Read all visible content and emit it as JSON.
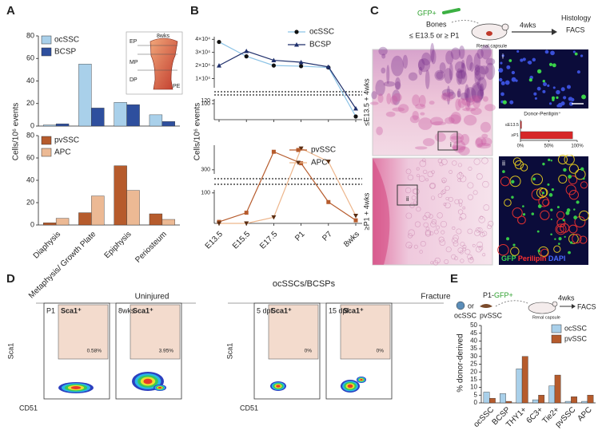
{
  "chart_data": [
    {
      "type": "bar",
      "categories": [
        null,
        null,
        null,
        null
      ],
      "series": [
        {
          "name": "ocSSC",
          "color": "#a9d0ea",
          "values": [
            1,
            55,
            21,
            10
          ]
        },
        {
          "name": "BCSP",
          "color": "#2e4f9e",
          "values": [
            2,
            16,
            19,
            4
          ]
        }
      ],
      "ylim": [
        0,
        80
      ],
      "yticks": [
        0,
        20,
        40,
        60,
        80
      ]
    },
    {
      "type": "bar",
      "ylabel": "Cells/10⁶ events",
      "categories": [
        "Diaphysis",
        "Metaphysis/ Growth Plate",
        "Epiphysis",
        "Periosteum"
      ],
      "series": [
        {
          "name": "pvSSC",
          "color": "#b65b2c",
          "values": [
            2,
            11,
            53,
            10
          ]
        },
        {
          "name": "APC",
          "color": "#ecb994",
          "values": [
            6,
            26,
            31,
            5
          ]
        }
      ],
      "ylim": [
        0,
        80
      ],
      "yticks": [
        0,
        20,
        40,
        60,
        80
      ]
    },
    {
      "type": "line",
      "categories": [
        null,
        null,
        null,
        null,
        null,
        null
      ],
      "series": [
        {
          "name": "ocSSC",
          "color": "#8cc3e6",
          "marker": "circle",
          "marker_color": "#111",
          "values": [
            38000,
            27000,
            20000,
            19500,
            18500,
            20
          ]
        },
        {
          "name": "BCSP",
          "color": "#1f2f6b",
          "marker": "triangle",
          "marker_color": "#1f2f6b",
          "values": [
            20000,
            31000,
            24000,
            22500,
            19000,
            70
          ]
        }
      ],
      "ysegments": [
        {
          "ylim": [
            3000,
            42000
          ],
          "yticks": [
            {
              "value": 10000,
              "label": "1×10⁴"
            },
            {
              "value": 20000,
              "label": "2×10⁴"
            },
            {
              "value": 30000,
              "label": "3×10⁴"
            },
            {
              "value": 40000,
              "label": "4×10⁴"
            }
          ]
        },
        {
          "ylim": [
            0,
            130
          ],
          "yticks": [
            100,
            120
          ]
        }
      ]
    },
    {
      "type": "line",
      "ylabel": "Cells/10⁶ events",
      "categories": [
        "E13.5",
        "E15.5",
        "E17.5",
        "P1",
        "P7",
        "8wks"
      ],
      "series": [
        {
          "name": "pvSSC",
          "color": "#b65b2c",
          "marker": "square",
          "marker_color": "#b65b2c",
          "values": [
            5,
            35,
            520,
            380,
            70,
            10
          ]
        },
        {
          "name": "APC",
          "color": "#edb68c",
          "marker": "triangle-down",
          "marker_color": "#5a2d12",
          "values": [
            0,
            0,
            20,
            560,
            400,
            25
          ]
        }
      ],
      "ysegments": [
        {
          "ylim": [
            250,
            600
          ],
          "yticks": [
            300
          ]
        },
        {
          "ylim": [
            0,
            110
          ],
          "yticks": [
            100
          ]
        }
      ]
    },
    {
      "type": "barh",
      "title": "Donor-Perilipin⁺",
      "categories": [
        "≤E13.5",
        "≥P1"
      ],
      "values": [
        2,
        92
      ],
      "color": "#d62728",
      "xlim": [
        0,
        100
      ],
      "xticks": [
        {
          "value": 0,
          "label": "0%"
        },
        {
          "value": 50,
          "label": "50%"
        },
        {
          "value": 100,
          "label": "100%"
        }
      ]
    },
    {
      "type": "bar",
      "ylabel": "% donor-derived",
      "categories": [
        "ocSSC",
        "BCSP",
        "THY1+",
        "6C3+",
        "Tie2+",
        "pvSSC",
        "APC"
      ],
      "series": [
        {
          "name": "ocSSC",
          "color": "#a9d0ea",
          "values": [
            7,
            6,
            22,
            2,
            11,
            1,
            1
          ]
        },
        {
          "name": "pvSSC",
          "color": "#b65b2c",
          "values": [
            3,
            1,
            30,
            5,
            18,
            4,
            5
          ]
        }
      ],
      "ylim": [
        0,
        50
      ],
      "yticks": [
        0,
        5,
        10,
        15,
        20,
        25,
        30,
        35,
        40,
        45,
        50
      ]
    }
  ],
  "figure": {
    "panel_labels": [
      "A",
      "B",
      "C",
      "D",
      "E"
    ],
    "a_inset": {
      "age": "8wks",
      "regions": [
        "EP",
        "MP",
        "DP",
        "PE"
      ]
    },
    "c_scheme": {
      "marker": "GFP+",
      "donor": "Bones",
      "ages": "≤ E13.5 or ≥ P1",
      "site": "Renal capsule",
      "time": "4wks",
      "readouts": [
        "Histology",
        "FACS"
      ]
    },
    "c_images": {
      "top": "≤E13.5 + 4wks",
      "bottom": "≥P1 + 4wks",
      "inset_top": "i",
      "inset_bottom": "ii",
      "stain": [
        "GFP",
        "Perilipin",
        "DAPI"
      ]
    },
    "d": {
      "title": "ocSSCs/BCSPs",
      "groups": [
        "Uninjured",
        "Fracture"
      ],
      "y_axis": "Sca1",
      "x_axis": "CD51",
      "gate": "Sca1⁺",
      "plots": [
        {
          "time": "P1",
          "percent": "0.58%"
        },
        {
          "time": "8wks",
          "percent": "3.95%"
        },
        {
          "time": "5 dpf",
          "percent": "0%"
        },
        {
          "time": "15 dpf",
          "percent": "0%"
        }
      ]
    },
    "e_scheme": {
      "donor": "P1-",
      "marker": "GFP+",
      "or": "or",
      "cells": [
        "ocSSC",
        "pvSSC"
      ],
      "time": "4wks",
      "readout": "FACS",
      "site": "Renal capsule"
    }
  }
}
